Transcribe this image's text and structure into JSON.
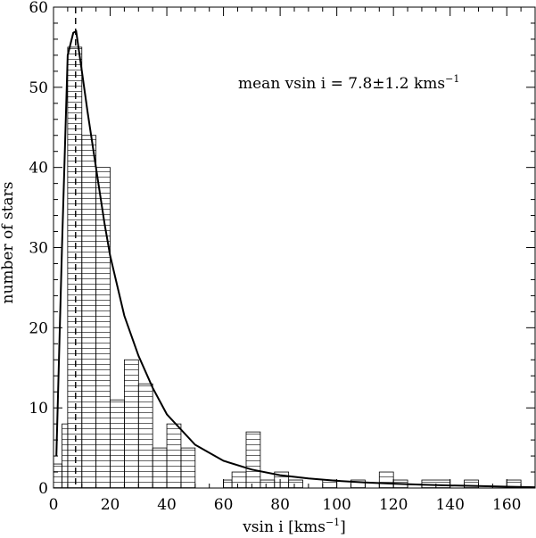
{
  "chart_data": {
    "type": "bar",
    "title": "",
    "xlabel": "vsin i [kms",
    "xlabel_sup": "−1",
    "xlabel_close": "]",
    "ylabel": "number of stars",
    "xlim": [
      0,
      170
    ],
    "ylim": [
      0,
      60
    ],
    "xticks": [
      0,
      20,
      40,
      60,
      80,
      100,
      120,
      140,
      160
    ],
    "yticks": [
      0,
      10,
      20,
      30,
      40,
      50,
      60
    ],
    "annotation": {
      "text": "mean vsin i = 7.8±1.2 kms",
      "sup": "−1"
    },
    "mean_marker_x": 7.8,
    "histogram": [
      {
        "x0": 0,
        "x1": 3,
        "value": 3
      },
      {
        "x0": 3,
        "x1": 5,
        "value": 8
      },
      {
        "x0": 5,
        "x1": 10,
        "value": 55
      },
      {
        "x0": 10,
        "x1": 15,
        "value": 44
      },
      {
        "x0": 15,
        "x1": 20,
        "value": 40
      },
      {
        "x0": 20,
        "x1": 25,
        "value": 11
      },
      {
        "x0": 25,
        "x1": 30,
        "value": 16
      },
      {
        "x0": 30,
        "x1": 35,
        "value": 13
      },
      {
        "x0": 35,
        "x1": 40,
        "value": 5
      },
      {
        "x0": 40,
        "x1": 45,
        "value": 8
      },
      {
        "x0": 45,
        "x1": 50,
        "value": 5
      },
      {
        "x0": 50,
        "x1": 60,
        "value": 0
      },
      {
        "x0": 60,
        "x1": 63,
        "value": 1
      },
      {
        "x0": 63,
        "x1": 68,
        "value": 2
      },
      {
        "x0": 68,
        "x1": 73,
        "value": 7
      },
      {
        "x0": 73,
        "x1": 78,
        "value": 1
      },
      {
        "x0": 78,
        "x1": 83,
        "value": 2
      },
      {
        "x0": 83,
        "x1": 88,
        "value": 1
      },
      {
        "x0": 88,
        "x1": 95,
        "value": 0
      },
      {
        "x0": 95,
        "x1": 100,
        "value": 1
      },
      {
        "x0": 100,
        "x1": 105,
        "value": 0
      },
      {
        "x0": 105,
        "x1": 110,
        "value": 1
      },
      {
        "x0": 110,
        "x1": 115,
        "value": 0
      },
      {
        "x0": 115,
        "x1": 120,
        "value": 2
      },
      {
        "x0": 120,
        "x1": 125,
        "value": 1
      },
      {
        "x0": 125,
        "x1": 130,
        "value": 0
      },
      {
        "x0": 130,
        "x1": 140,
        "value": 1
      },
      {
        "x0": 140,
        "x1": 145,
        "value": 0
      },
      {
        "x0": 145,
        "x1": 150,
        "value": 1
      },
      {
        "x0": 150,
        "x1": 160,
        "value": 0
      },
      {
        "x0": 160,
        "x1": 165,
        "value": 1
      }
    ],
    "fit_curve": {
      "x": [
        1,
        3,
        5,
        7,
        8,
        10,
        12,
        15,
        18,
        20,
        25,
        30,
        35,
        40,
        50,
        60,
        70,
        80,
        90,
        100,
        110,
        120,
        130,
        140,
        150,
        160,
        170
      ],
      "y": [
        4,
        30,
        54,
        56.8,
        57,
        52,
        47,
        40,
        33,
        29,
        21.5,
        16.5,
        12.5,
        9.2,
        5.4,
        3.4,
        2.3,
        1.6,
        1.2,
        0.9,
        0.7,
        0.55,
        0.42,
        0.32,
        0.24,
        0.17,
        0.1
      ]
    }
  }
}
